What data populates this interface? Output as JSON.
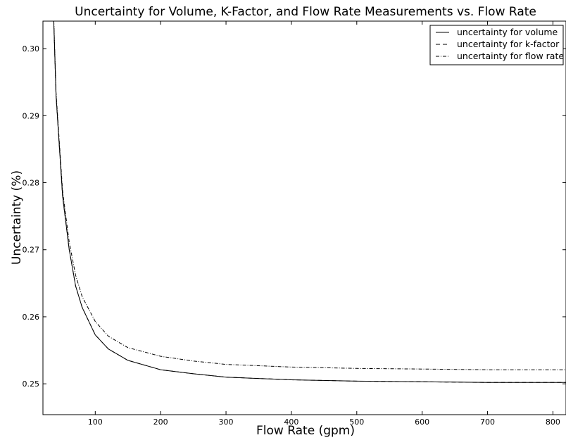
{
  "chart_data": {
    "type": "line",
    "title": "Uncertainty for Volume, K-Factor, and Flow Rate Measurements vs. Flow Rate",
    "xlabel": "Flow Rate (gpm)",
    "ylabel": "Uncertainty (%)",
    "xlim": [
      20,
      820
    ],
    "ylim": [
      0.2454,
      0.3041
    ],
    "x_ticks": [
      100,
      200,
      300,
      400,
      500,
      600,
      700,
      800
    ],
    "y_ticks": [
      0.25,
      0.26,
      0.27,
      0.28,
      0.29,
      0.3
    ],
    "x_tick_labels": [
      "100",
      "200",
      "300",
      "400",
      "500",
      "600",
      "700",
      "800"
    ],
    "y_tick_labels": [
      "0.25",
      "0.26",
      "0.27",
      "0.28",
      "0.29",
      "0.30"
    ],
    "grid": false,
    "legend_position": "top-right",
    "series": [
      {
        "name": "uncertainty for volume",
        "style": "solid",
        "x": [
          34,
          40,
          50,
          60,
          70,
          80,
          100,
          120,
          150,
          200,
          250,
          300,
          400,
          500,
          600,
          700,
          820
        ],
        "y": [
          0.312,
          0.293,
          0.278,
          0.2701,
          0.2646,
          0.2614,
          0.2573,
          0.2552,
          0.2535,
          0.2521,
          0.2515,
          0.251,
          0.2506,
          0.2504,
          0.2503,
          0.2502,
          0.2502
        ]
      },
      {
        "name": "uncertainty for k-factor",
        "style": "dashed",
        "x": [
          34,
          40,
          50,
          60,
          70,
          80,
          100,
          120,
          150,
          200,
          250,
          300,
          400,
          500,
          600,
          700,
          820
        ],
        "y": [
          0.312,
          0.293,
          0.278,
          0.2701,
          0.2646,
          0.2614,
          0.2573,
          0.2552,
          0.2535,
          0.2521,
          0.2515,
          0.251,
          0.2506,
          0.2504,
          0.2503,
          0.2502,
          0.2502
        ]
      },
      {
        "name": "uncertainty for flow rate",
        "style": "dashdot",
        "x": [
          34,
          40,
          50,
          60,
          70,
          80,
          100,
          120,
          150,
          200,
          250,
          300,
          400,
          500,
          600,
          700,
          820
        ],
        "y": [
          0.3125,
          0.2935,
          0.2788,
          0.2712,
          0.2662,
          0.263,
          0.2593,
          0.2571,
          0.2554,
          0.2541,
          0.2534,
          0.2529,
          0.2525,
          0.2523,
          0.2522,
          0.2521,
          0.2521
        ]
      }
    ]
  }
}
